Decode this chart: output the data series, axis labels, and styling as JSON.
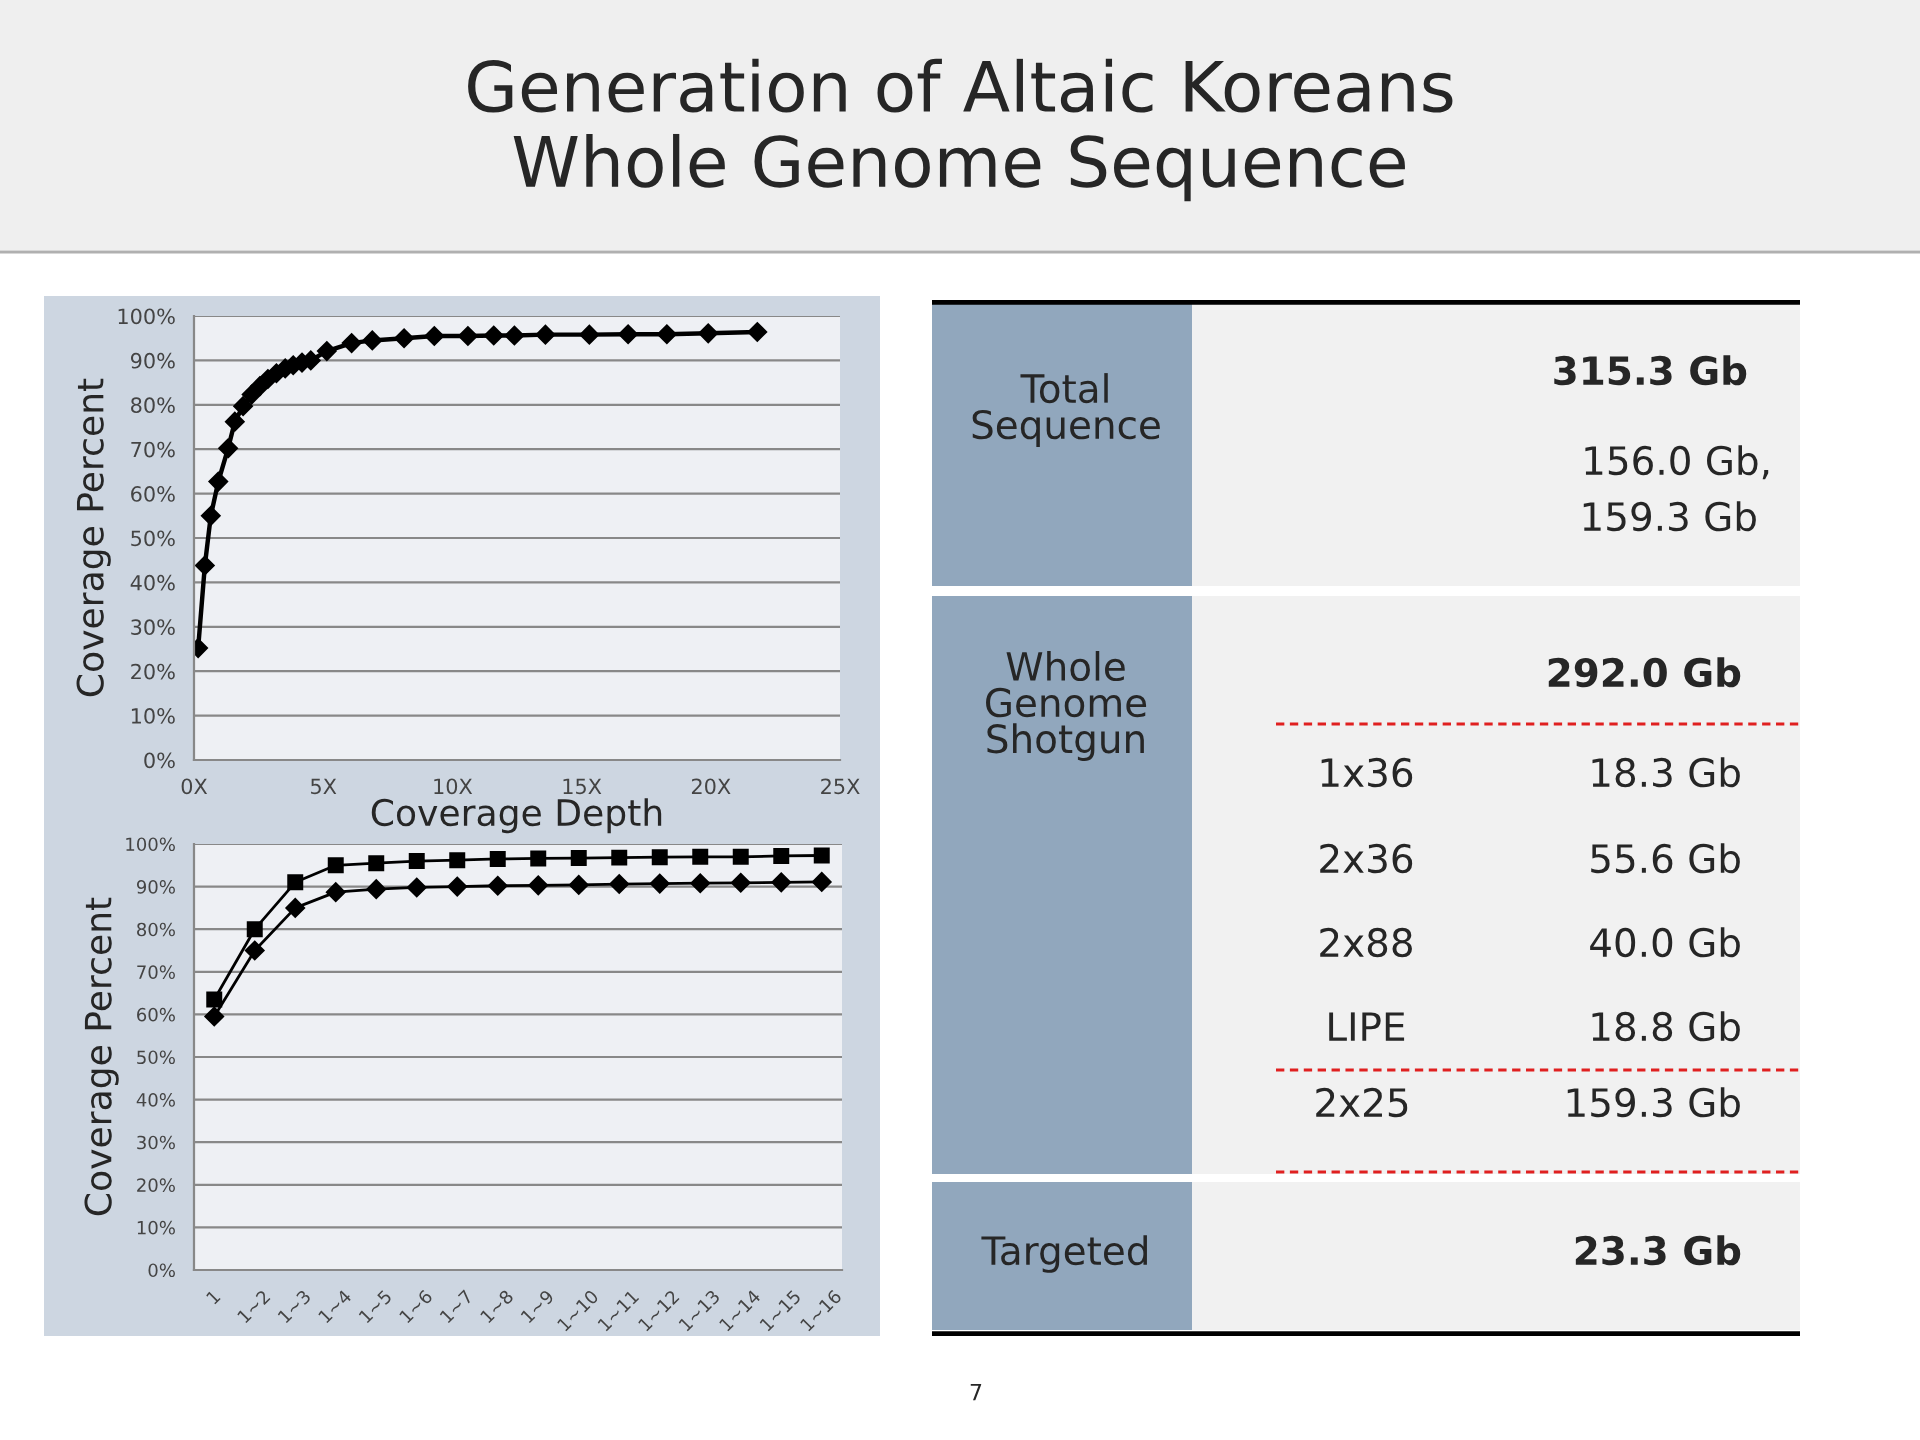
{
  "chart_data": [
    {
      "type": "line",
      "title": "Generation of Altaic Koreans\nWhole Genome Sequence",
      "xlabel": "Coverage Depth",
      "ylabel": "Coverage Percent",
      "annotations": [
        "7"
      ],
      "x": [
        0.16,
        0.42,
        0.65,
        0.94,
        1.32,
        1.58,
        1.9,
        2.23,
        2.55,
        2.86,
        3.19,
        3.53,
        3.84,
        4.18,
        4.52,
        5.14,
        6.1,
        6.9,
        8.13,
        9.3,
        10.6,
        11.6,
        12.4,
        13.6,
        15.3,
        16.8,
        18.3,
        19.9,
        21.8
      ],
      "series": [
        {
          "color": "#000000",
          "marker": "diamond",
          "values": [
            25.2,
            43.8,
            55,
            62.7,
            70.2,
            76.2,
            79.7,
            82.3,
            84.2,
            85.8,
            87.1,
            88.2,
            88.9,
            89.5,
            90,
            92.1,
            93.9,
            94.5,
            95,
            95.5,
            95.5,
            95.6,
            95.6,
            95.8,
            95.8,
            95.9,
            95.9,
            96.1,
            96.4
          ]
        }
      ],
      "xlim": [
        0,
        25
      ],
      "xticks": [
        {
          "value": 0,
          "label": "0X"
        },
        {
          "value": 5,
          "label": "5X"
        },
        {
          "value": 10,
          "label": "10X"
        },
        {
          "value": 15,
          "label": "15X"
        },
        {
          "value": 20,
          "label": "20X"
        },
        {
          "value": 25,
          "label": "25X"
        }
      ],
      "ylim": [
        0,
        100
      ],
      "yticks": [
        {
          "value": 0,
          "label": "0%"
        },
        {
          "value": 10,
          "label": "10%"
        },
        {
          "value": 20,
          "label": "20%"
        },
        {
          "value": 30,
          "label": "30%"
        },
        {
          "value": 40,
          "label": "40%"
        },
        {
          "value": 50,
          "label": "50%"
        },
        {
          "value": 60,
          "label": "60%"
        },
        {
          "value": 70,
          "label": "70%"
        },
        {
          "value": 80,
          "label": "80%"
        },
        {
          "value": 90,
          "label": "90%"
        },
        {
          "value": 100,
          "label": "100%"
        }
      ],
      "grid": "y",
      "line_style": "solid",
      "legend": false
    },
    {
      "type": "line",
      "ylabel": "Coverage Percent",
      "categories": [
        "1",
        "1~2",
        "1~3",
        "1~4",
        "1~5",
        "1~6",
        "1~7",
        "1~8",
        "1~9",
        "1~10",
        "1~11",
        "1~12",
        "1~13",
        "1~14",
        "1~15",
        "1~16"
      ],
      "series": [
        {
          "color": "#000000",
          "marker": "square",
          "values": [
            63.5,
            80,
            91,
            95,
            95.5,
            96,
            96.2,
            96.5,
            96.6,
            96.7,
            96.8,
            96.9,
            97,
            97,
            97.2,
            97.3
          ]
        },
        {
          "color": "#000000",
          "marker": "diamond",
          "values": [
            59.5,
            75,
            85,
            88.7,
            89.4,
            89.8,
            90,
            90.2,
            90.3,
            90.4,
            90.6,
            90.7,
            90.8,
            90.9,
            91,
            91.1
          ]
        }
      ],
      "ylim": [
        0,
        100
      ],
      "yticks": [
        {
          "value": 0,
          "label": "0%"
        },
        {
          "value": 10,
          "label": "10%"
        },
        {
          "value": 20,
          "label": "20%"
        },
        {
          "value": 30,
          "label": "30%"
        },
        {
          "value": 40,
          "label": "40%"
        },
        {
          "value": 50,
          "label": "50%"
        },
        {
          "value": 60,
          "label": "60%"
        },
        {
          "value": 70,
          "label": "70%"
        },
        {
          "value": 80,
          "label": "80%"
        },
        {
          "value": 90,
          "label": "90%"
        },
        {
          "value": 100,
          "label": "100%"
        }
      ],
      "grid": "y",
      "line_style": "solid",
      "legend": false
    },
    {
      "type": "other",
      "categories": [
        "Total\nSequence",
        "Whole\nGenome\nShotgun",
        "Targeted"
      ],
      "annotations": [
        "315.3 Gb",
        "156.0 Gb,",
        "159.3 Gb",
        "292.0 Gb",
        "1x36",
        "18.3 Gb",
        "2x36",
        "55.6 Gb",
        "2x88",
        "40.0 Gb",
        "LIPE",
        "18.8 Gb",
        "2x25",
        "159.3 Gb",
        "23.3 Gb"
      ]
    }
  ]
}
